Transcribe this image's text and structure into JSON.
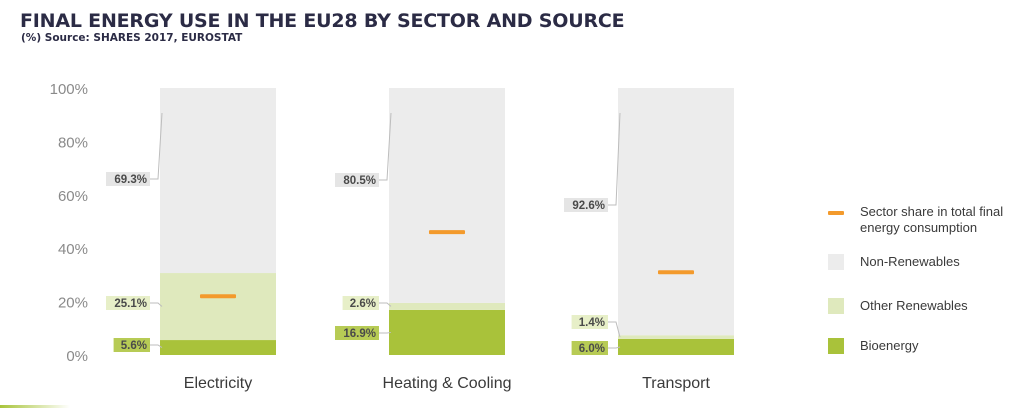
{
  "header": {
    "title": "FINAL ENERGY USE IN THE EU28 BY SECTOR AND SOURCE",
    "subtitle": "(%) Source: SHARES 2017, EUROSTAT"
  },
  "colors": {
    "non_renewables": "#ececec",
    "other_renewables": "#dfe9bd",
    "bioenergy": "#a9c23a",
    "sector_share": "#f39a2c",
    "label_bg_grey": "#e5e5e5",
    "label_bg_light_green": "#e7efc8",
    "label_bg_green": "#b7cb55"
  },
  "chart_data": {
    "type": "bar",
    "stacked": true,
    "title": "FINAL ENERGY USE IN THE EU28 BY SECTOR AND SOURCE",
    "subtitle": "(%) Source: SHARES 2017, EUROSTAT",
    "categories": [
      "Electricity",
      "Heating & Cooling",
      "Transport"
    ],
    "yticks": [
      "0%",
      "20%",
      "40%",
      "60%",
      "80%",
      "100%"
    ],
    "ylim": [
      0,
      100
    ],
    "grid": false,
    "series": [
      {
        "name": "Bioenergy",
        "key": "bioenergy",
        "values": [
          5.6,
          16.9,
          6.0
        ],
        "labels": [
          "5.6%",
          "16.9%",
          "6.0%"
        ]
      },
      {
        "name": "Other Renewables",
        "key": "other_renewables",
        "values": [
          25.1,
          2.6,
          1.4
        ],
        "labels": [
          "25.1%",
          "2.6%",
          "1.4%"
        ]
      },
      {
        "name": "Non-Renewables",
        "key": "non_renewables",
        "values": [
          69.3,
          80.5,
          92.6
        ],
        "labels": [
          "69.3%",
          "80.5%",
          "92.6%"
        ]
      }
    ],
    "sector_share": {
      "name": "Sector share in total final energy consumption",
      "values": [
        22,
        46,
        31
      ]
    },
    "legend_position": "right"
  },
  "legend": {
    "items": [
      {
        "key": "sector_share",
        "label": "Sector share in total final energy consumption",
        "shape": "line"
      },
      {
        "key": "non_renewables",
        "label": "Non-Renewables",
        "shape": "square"
      },
      {
        "key": "other_renewables",
        "label": "Other Renewables",
        "shape": "square"
      },
      {
        "key": "bioenergy",
        "label": "Bioenergy",
        "shape": "square"
      }
    ]
  }
}
